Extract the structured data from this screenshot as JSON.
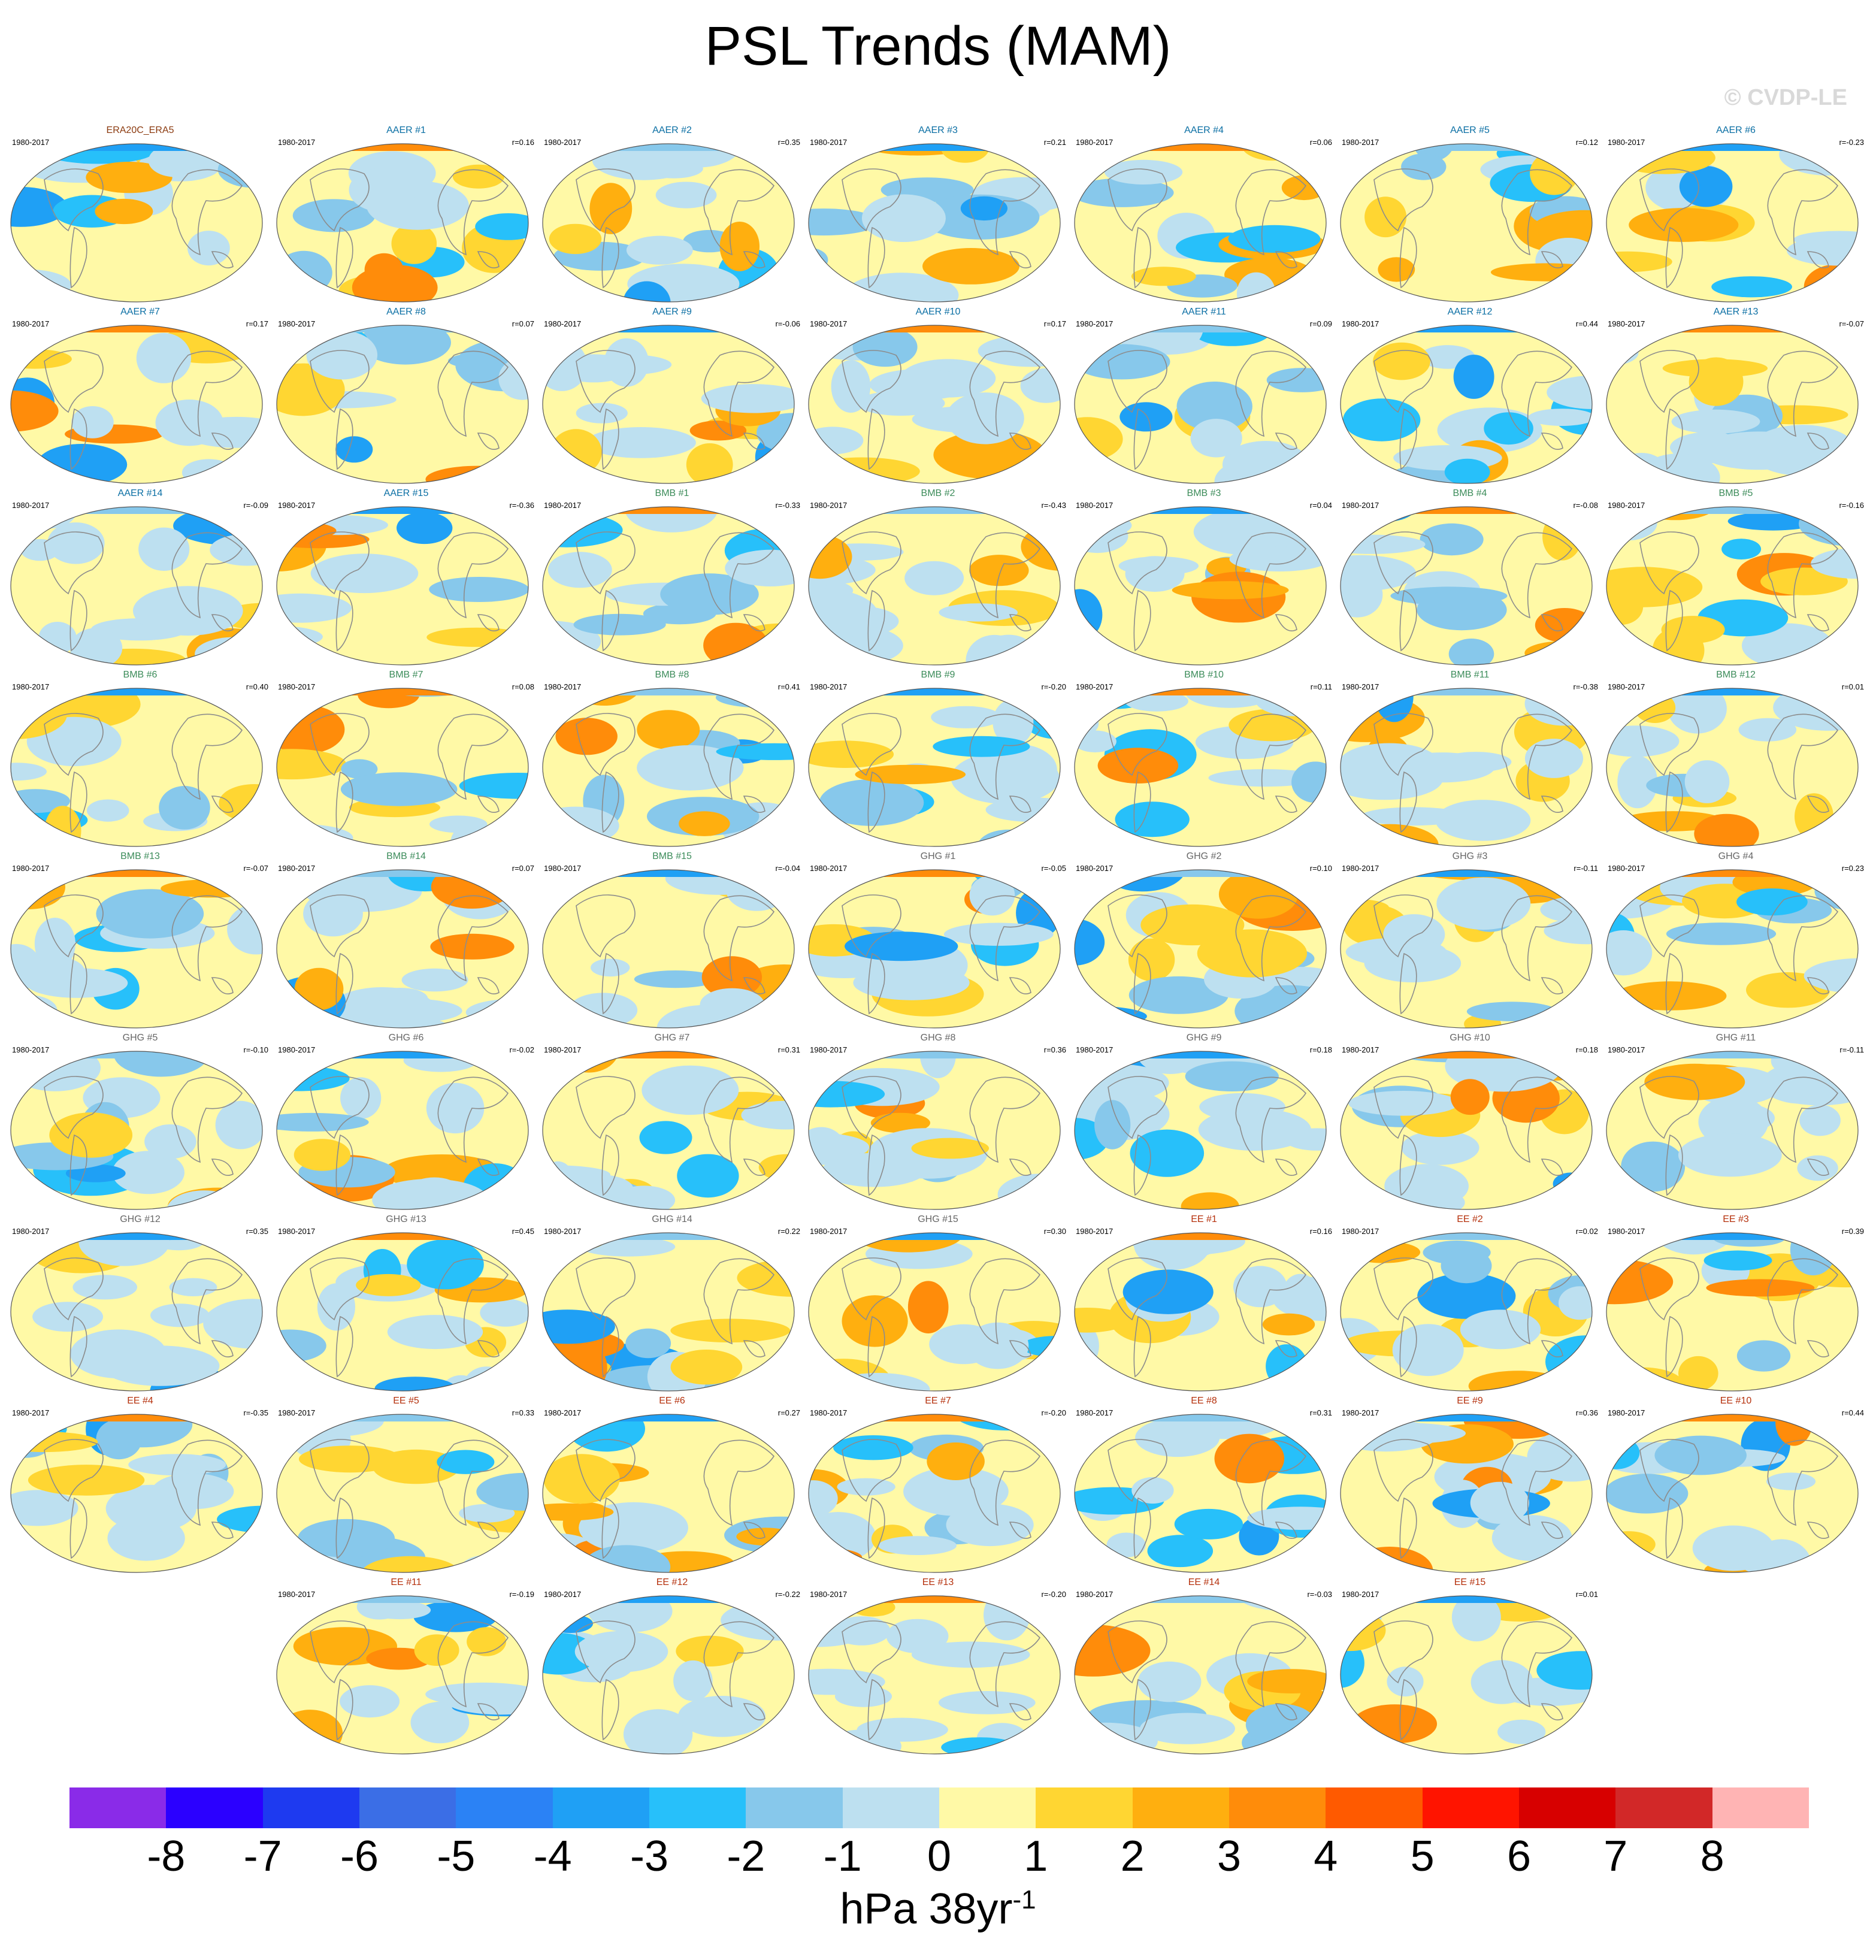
{
  "title": "PSL Trends (MAM)",
  "watermark": "© CVDP-LE",
  "years": "1980-2017",
  "groups": {
    "ERA20C": {
      "color": "#8B3A0F"
    },
    "AAER": {
      "color": "#0B6FA4"
    },
    "BMB": {
      "color": "#3C8C5A"
    },
    "GHG": {
      "color": "#666666"
    },
    "EE": {
      "color": "#B5300C"
    }
  },
  "panels": [
    {
      "name": "ERA20C_ERA5",
      "group": "ERA20C",
      "r": ""
    },
    {
      "name": "AAER #1",
      "group": "AAER",
      "r": "r=0.16"
    },
    {
      "name": "AAER #2",
      "group": "AAER",
      "r": "r=0.35"
    },
    {
      "name": "AAER #3",
      "group": "AAER",
      "r": "r=0.21"
    },
    {
      "name": "AAER #4",
      "group": "AAER",
      "r": "r=0.06"
    },
    {
      "name": "AAER #5",
      "group": "AAER",
      "r": "r=0.12"
    },
    {
      "name": "AAER #6",
      "group": "AAER",
      "r": "r=-0.23"
    },
    {
      "name": "AAER #7",
      "group": "AAER",
      "r": "r=0.17"
    },
    {
      "name": "AAER #8",
      "group": "AAER",
      "r": "r=0.07"
    },
    {
      "name": "AAER #9",
      "group": "AAER",
      "r": "r=-0.06"
    },
    {
      "name": "AAER #10",
      "group": "AAER",
      "r": "r=0.17"
    },
    {
      "name": "AAER #11",
      "group": "AAER",
      "r": "r=0.09"
    },
    {
      "name": "AAER #12",
      "group": "AAER",
      "r": "r=0.44"
    },
    {
      "name": "AAER #13",
      "group": "AAER",
      "r": "r=-0.07"
    },
    {
      "name": "AAER #14",
      "group": "AAER",
      "r": "r=-0.09"
    },
    {
      "name": "AAER #15",
      "group": "AAER",
      "r": "r=-0.36"
    },
    {
      "name": "BMB #1",
      "group": "BMB",
      "r": "r=-0.33"
    },
    {
      "name": "BMB #2",
      "group": "BMB",
      "r": "r=-0.43"
    },
    {
      "name": "BMB #3",
      "group": "BMB",
      "r": "r=0.04"
    },
    {
      "name": "BMB #4",
      "group": "BMB",
      "r": "r=-0.08"
    },
    {
      "name": "BMB #5",
      "group": "BMB",
      "r": "r=-0.16"
    },
    {
      "name": "BMB #6",
      "group": "BMB",
      "r": "r=0.40"
    },
    {
      "name": "BMB #7",
      "group": "BMB",
      "r": "r=0.08"
    },
    {
      "name": "BMB #8",
      "group": "BMB",
      "r": "r=0.41"
    },
    {
      "name": "BMB #9",
      "group": "BMB",
      "r": "r=-0.20"
    },
    {
      "name": "BMB #10",
      "group": "BMB",
      "r": "r=0.11"
    },
    {
      "name": "BMB #11",
      "group": "BMB",
      "r": "r=-0.38"
    },
    {
      "name": "BMB #12",
      "group": "BMB",
      "r": "r=0.01"
    },
    {
      "name": "BMB #13",
      "group": "BMB",
      "r": "r=-0.07"
    },
    {
      "name": "BMB #14",
      "group": "BMB",
      "r": "r=0.07"
    },
    {
      "name": "BMB #15",
      "group": "BMB",
      "r": "r=-0.04"
    },
    {
      "name": "GHG #1",
      "group": "GHG",
      "r": "r=-0.05"
    },
    {
      "name": "GHG #2",
      "group": "GHG",
      "r": "r=0.10"
    },
    {
      "name": "GHG #3",
      "group": "GHG",
      "r": "r=-0.11"
    },
    {
      "name": "GHG #4",
      "group": "GHG",
      "r": "r=0.23"
    },
    {
      "name": "GHG #5",
      "group": "GHG",
      "r": "r=-0.10"
    },
    {
      "name": "GHG #6",
      "group": "GHG",
      "r": "r=-0.02"
    },
    {
      "name": "GHG #7",
      "group": "GHG",
      "r": "r=0.31"
    },
    {
      "name": "GHG #8",
      "group": "GHG",
      "r": "r=0.36"
    },
    {
      "name": "GHG #9",
      "group": "GHG",
      "r": "r=0.18"
    },
    {
      "name": "GHG #10",
      "group": "GHG",
      "r": "r=0.18"
    },
    {
      "name": "GHG #11",
      "group": "GHG",
      "r": "r=-0.11"
    },
    {
      "name": "GHG #12",
      "group": "GHG",
      "r": "r=0.35"
    },
    {
      "name": "GHG #13",
      "group": "GHG",
      "r": "r=0.45"
    },
    {
      "name": "GHG #14",
      "group": "GHG",
      "r": "r=0.22"
    },
    {
      "name": "GHG #15",
      "group": "GHG",
      "r": "r=0.30"
    },
    {
      "name": "EE #1",
      "group": "EE",
      "r": "r=0.16"
    },
    {
      "name": "EE #2",
      "group": "EE",
      "r": "r=0.02"
    },
    {
      "name": "EE #3",
      "group": "EE",
      "r": "r=0.39"
    },
    {
      "name": "EE #4",
      "group": "EE",
      "r": "r=-0.35"
    },
    {
      "name": "EE #5",
      "group": "EE",
      "r": "r=0.33"
    },
    {
      "name": "EE #6",
      "group": "EE",
      "r": "r=0.27"
    },
    {
      "name": "EE #7",
      "group": "EE",
      "r": "r=-0.20"
    },
    {
      "name": "EE #8",
      "group": "EE",
      "r": "r=0.31"
    },
    {
      "name": "EE #9",
      "group": "EE",
      "r": "r=0.36"
    },
    {
      "name": "EE #10",
      "group": "EE",
      "r": "r=0.44"
    },
    {
      "name": "EE #11",
      "group": "EE",
      "r": "r=-0.19"
    },
    {
      "name": "EE #12",
      "group": "EE",
      "r": "r=-0.22"
    },
    {
      "name": "EE #13",
      "group": "EE",
      "r": "r=-0.20"
    },
    {
      "name": "EE #14",
      "group": "EE",
      "r": "r=-0.03"
    },
    {
      "name": "EE #15",
      "group": "EE",
      "r": "r=0.01"
    }
  ],
  "colorbar": {
    "colors": [
      "#8A2BE8",
      "#2B00FF",
      "#1E3AF0",
      "#3B6EE6",
      "#2B82F5",
      "#1FA0F5",
      "#27C0FA",
      "#87C8EB",
      "#BDE0F0",
      "#FFF9A6",
      "#FFD632",
      "#FFAF0F",
      "#FF8C0A",
      "#FF5A00",
      "#FF1400",
      "#D70000",
      "#D22828",
      "#FFB4B4"
    ],
    "ticks": [
      "-8",
      "-7",
      "-6",
      "-5",
      "-4",
      "-3",
      "-2",
      "-1",
      "0",
      "1",
      "2",
      "3",
      "4",
      "5",
      "6",
      "7",
      "8"
    ],
    "units": "hPa 38yr",
    "units_exp": "-1"
  }
}
